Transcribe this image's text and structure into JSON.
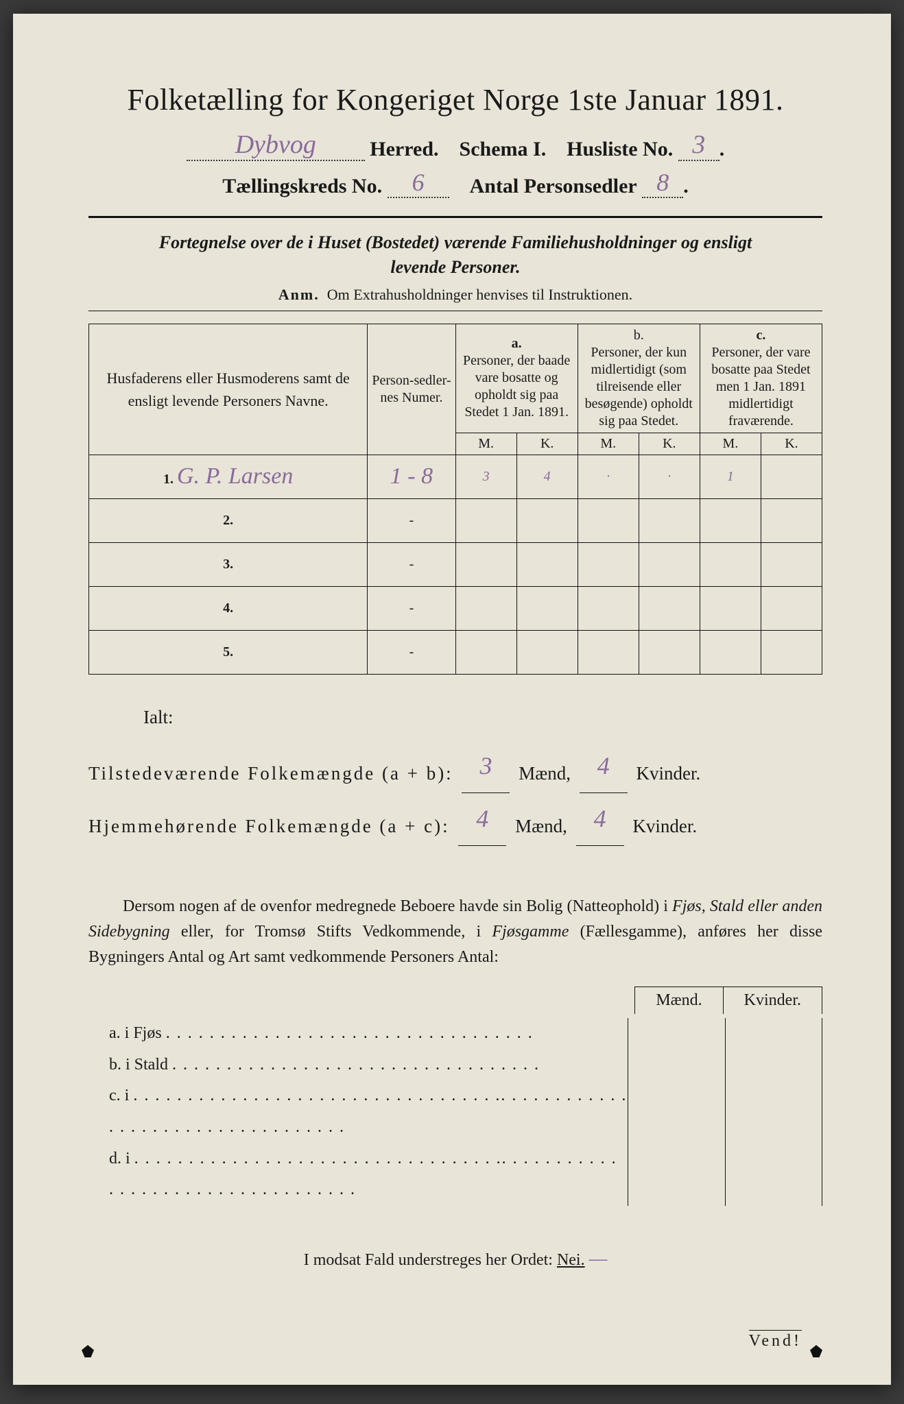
{
  "colors": {
    "paper_bg": "#e8e5d8",
    "ink": "#1a1a1a",
    "handwriting": "#8a6a9a",
    "page_surround": "#3a3a3a"
  },
  "typography": {
    "title_fontsize_pt": 33,
    "body_fontsize_pt": 18,
    "table_header_fontsize_pt": 13,
    "handwriting_family": "cursive"
  },
  "header": {
    "title": "Folketælling for Kongeriget Norge 1ste Januar 1891.",
    "herred_value": "Dybvog",
    "herred_label": "Herred.",
    "schema_label": "Schema I.",
    "husliste_label": "Husliste No.",
    "husliste_no": "3",
    "kreds_label": "Tællingskreds No.",
    "kreds_no": "6",
    "personsedler_label": "Antal Personsedler",
    "personsedler_no": "8"
  },
  "subtitle": {
    "line1": "Fortegnelse over de i Huset (Bostedet) værende Familiehusholdninger og ensligt",
    "line2": "levende Personer.",
    "anm_label": "Anm.",
    "anm_text": "Om Extrahusholdninger henvises til Instruktionen."
  },
  "table": {
    "col_name_header": "Husfaderens eller Husmoderens samt de ensligt levende Personers Navne.",
    "col_num_header": "Person-sedler-nes Numer.",
    "group_a_label": "a.",
    "group_a_text": "Personer, der baade vare bosatte og opholdt sig paa Stedet 1 Jan. 1891.",
    "group_b_label": "b.",
    "group_b_text": "Personer, der kun midlertidigt (som tilreisende eller besøgende) opholdt sig paa Stedet.",
    "group_c_label": "c.",
    "group_c_text": "Personer, der vare bosatte paa Stedet men 1 Jan. 1891 midlertidigt fraværende.",
    "m_label": "M.",
    "k_label": "K.",
    "rows": [
      {
        "n": "1.",
        "name": "G. P. Larsen",
        "num": "1 - 8",
        "a_m": "3",
        "a_k": "4",
        "b_m": "·",
        "b_k": "·",
        "c_m": "1",
        "c_k": ""
      },
      {
        "n": "2.",
        "name": "",
        "num": "-",
        "a_m": "",
        "a_k": "",
        "b_m": "",
        "b_k": "",
        "c_m": "",
        "c_k": ""
      },
      {
        "n": "3.",
        "name": "",
        "num": "-",
        "a_m": "",
        "a_k": "",
        "b_m": "",
        "b_k": "",
        "c_m": "",
        "c_k": ""
      },
      {
        "n": "4.",
        "name": "",
        "num": "-",
        "a_m": "",
        "a_k": "",
        "b_m": "",
        "b_k": "",
        "c_m": "",
        "c_k": ""
      },
      {
        "n": "5.",
        "name": "",
        "num": "-",
        "a_m": "",
        "a_k": "",
        "b_m": "",
        "b_k": "",
        "c_m": "",
        "c_k": ""
      }
    ]
  },
  "totals": {
    "ialt_label": "Ialt:",
    "tilstede_label": "Tilstedeværende Folkemængde (a + b):",
    "tilstede_m": "3",
    "tilstede_k": "4",
    "hjemme_label": "Hjemmehørende Folkemængde (a + c):",
    "hjemme_m": "4",
    "hjemme_k": "4",
    "maend_label": "Mænd,",
    "kvinder_label": "Kvinder."
  },
  "paragraph": {
    "text_pre": "Dersom nogen af de ovenfor medregnede Beboere havde sin Bolig (Natteophold) i ",
    "italic1": "Fjøs, Stald eller anden Sidebygning",
    "text_mid": " eller, for Tromsø Stifts Vedkommende, i ",
    "italic2": "Fjøsgamme",
    "paren": " (Fællesgamme), anføres her disse Bygningers Antal og Art samt vedkommende Personers Antal:"
  },
  "mk_cols": {
    "m": "Mænd.",
    "k": "Kvinder."
  },
  "abcd": {
    "a": "a.   i        Fjøs",
    "b": "b.   i        Stald",
    "c": "c.   i",
    "d": "d.   i",
    "dots": ". . . . . . . . . . . . . . . . . . . . . . . . . . . . . . . . . ."
  },
  "footer": {
    "text_pre": "I modsat Fald understreges her Ordet: ",
    "nei": "Nei.",
    "vend": "Vend!"
  }
}
